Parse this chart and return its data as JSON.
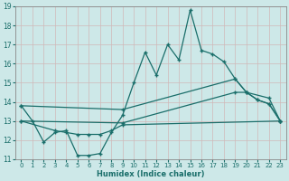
{
  "xlabel": "Humidex (Indice chaleur)",
  "xlim": [
    -0.5,
    23.5
  ],
  "ylim": [
    11,
    19
  ],
  "xticks": [
    0,
    1,
    2,
    3,
    4,
    5,
    6,
    7,
    8,
    9,
    10,
    11,
    12,
    13,
    14,
    15,
    16,
    17,
    18,
    19,
    20,
    21,
    22,
    23
  ],
  "yticks": [
    11,
    12,
    13,
    14,
    15,
    16,
    17,
    18,
    19
  ],
  "bg_color": "#cde8e8",
  "grid_color": "#b8d8d8",
  "line_color": "#1a6e6a",
  "series1_x": [
    0,
    1,
    2,
    3,
    4,
    5,
    6,
    7,
    8,
    9,
    10,
    11,
    12,
    13,
    14,
    15,
    16,
    17,
    18,
    19,
    20,
    21,
    22,
    23
  ],
  "series1_y": [
    13.8,
    13.0,
    11.9,
    12.4,
    12.5,
    11.2,
    11.2,
    11.3,
    12.4,
    13.3,
    15.0,
    16.6,
    15.4,
    17.0,
    16.2,
    18.8,
    16.7,
    16.5,
    16.1,
    15.2,
    14.5,
    14.1,
    13.9,
    13.0
  ],
  "series2_x": [
    0,
    9,
    19,
    20,
    21,
    22,
    23
  ],
  "series2_y": [
    13.8,
    13.6,
    15.2,
    14.5,
    14.1,
    13.9,
    13.0
  ],
  "series3_x": [
    0,
    9,
    19,
    20,
    22,
    23
  ],
  "series3_y": [
    13.0,
    12.9,
    14.5,
    14.5,
    14.2,
    13.0
  ],
  "series4_x": [
    0,
    3,
    4,
    5,
    6,
    7,
    8,
    9,
    23
  ],
  "series4_y": [
    13.0,
    12.5,
    12.4,
    12.3,
    12.3,
    12.3,
    12.5,
    12.8,
    13.0
  ]
}
